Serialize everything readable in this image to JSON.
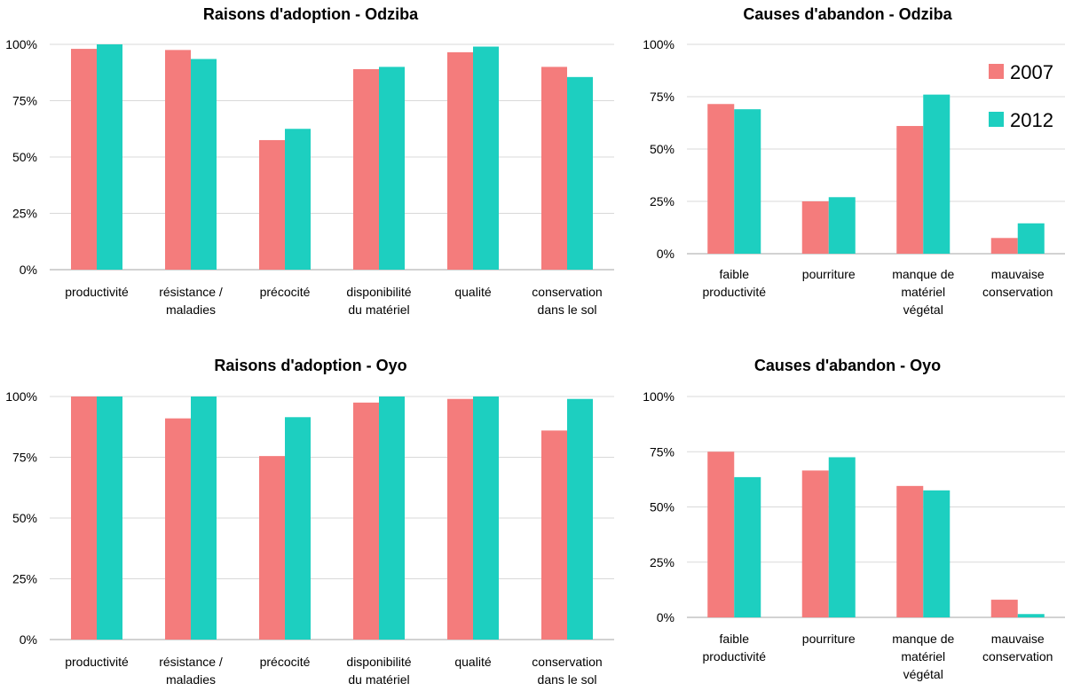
{
  "colors": {
    "s2007": "#F47C7C",
    "s2012": "#1DCFC0",
    "grid": "#D9D9D9",
    "axis": "#A6A6A6"
  },
  "legend": [
    {
      "name": "2007",
      "color": "#F47C7C"
    },
    {
      "name": "2012",
      "color": "#1DCFC0"
    }
  ],
  "chart_data": [
    {
      "type": "bar",
      "title": "Raisons d'adoption - Odziba",
      "categories": [
        [
          "productivité"
        ],
        [
          "résistance /",
          "maladies"
        ],
        [
          "précocité"
        ],
        [
          "disponibilité",
          "du matériel"
        ],
        [
          "qualité"
        ],
        [
          "conservation",
          "dans le sol"
        ]
      ],
      "series": [
        {
          "name": "2007",
          "values": [
            98,
            97.5,
            57.5,
            89,
            96.5,
            90
          ]
        },
        {
          "name": "2012",
          "values": [
            100,
            93.5,
            62.5,
            90,
            99,
            85.5
          ]
        }
      ],
      "ylim": [
        0,
        100
      ],
      "yticks": [
        "0%",
        "25%",
        "50%",
        "75%",
        "100%"
      ],
      "xlabel": "",
      "ylabel": ""
    },
    {
      "type": "bar",
      "title": "Causes d'abandon - Odziba",
      "categories": [
        [
          "faible",
          "productivité"
        ],
        [
          "pourriture"
        ],
        [
          "manque de",
          "matériel",
          "végétal"
        ],
        [
          "mauvaise",
          "conservation"
        ]
      ],
      "series": [
        {
          "name": "2007",
          "values": [
            71.5,
            25,
            61,
            7.5
          ]
        },
        {
          "name": "2012",
          "values": [
            69,
            27,
            76,
            14.5
          ]
        }
      ],
      "ylim": [
        0,
        100
      ],
      "yticks": [
        "0%",
        "25%",
        "50%",
        "75%",
        "100%"
      ],
      "xlabel": "",
      "ylabel": "",
      "legend_position": "right"
    },
    {
      "type": "bar",
      "title": "Raisons d'adoption - Oyo",
      "categories": [
        [
          "productivité"
        ],
        [
          "résistance /",
          "maladies"
        ],
        [
          "précocité"
        ],
        [
          "disponibilité",
          "du matériel"
        ],
        [
          "qualité"
        ],
        [
          "conservation",
          "dans le sol"
        ]
      ],
      "series": [
        {
          "name": "2007",
          "values": [
            100,
            91,
            75.5,
            97.5,
            99,
            86
          ]
        },
        {
          "name": "2012",
          "values": [
            100,
            100,
            91.5,
            100,
            100,
            99
          ]
        }
      ],
      "ylim": [
        0,
        100
      ],
      "yticks": [
        "0%",
        "25%",
        "50%",
        "75%",
        "100%"
      ],
      "xlabel": "",
      "ylabel": ""
    },
    {
      "type": "bar",
      "title": "Causes d'abandon - Oyo",
      "categories": [
        [
          "faible",
          "productivité"
        ],
        [
          "pourriture"
        ],
        [
          "manque de",
          "matériel",
          "végétal"
        ],
        [
          "mauvaise",
          "conservation"
        ]
      ],
      "series": [
        {
          "name": "2007",
          "values": [
            75,
            66.5,
            59.5,
            8
          ]
        },
        {
          "name": "2012",
          "values": [
            63.5,
            72.5,
            57.5,
            1.5
          ]
        }
      ],
      "ylim": [
        0,
        100
      ],
      "yticks": [
        "0%",
        "25%",
        "50%",
        "75%",
        "100%"
      ],
      "xlabel": "",
      "ylabel": ""
    }
  ]
}
